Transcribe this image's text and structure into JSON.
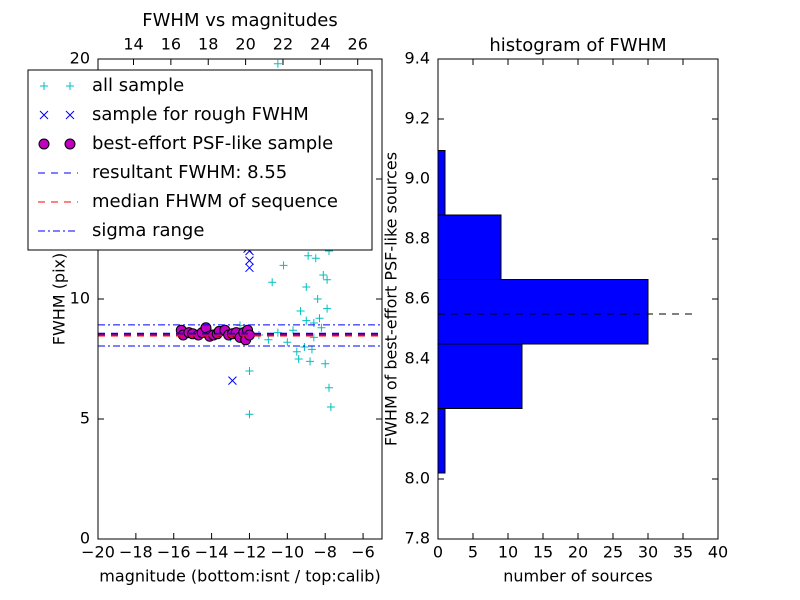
{
  "chart_data": [
    {
      "type": "scatter",
      "title": "FWHM vs magnitudes",
      "xlabel": "magnitude (bottom:isnt / top:calib)",
      "ylabel": "FWHM (pix)",
      "xlim": [
        -20,
        -5
      ],
      "xticks": [
        {
          "value": -20,
          "label": "−20"
        },
        {
          "value": -18,
          "label": "−18"
        },
        {
          "value": -16,
          "label": "−16"
        },
        {
          "value": -14,
          "label": "−14"
        },
        {
          "value": -12,
          "label": "−12"
        },
        {
          "value": -10,
          "label": "−10"
        },
        {
          "value": -8,
          "label": "−8"
        },
        {
          "value": -6,
          "label": "−6"
        }
      ],
      "x2lim": [
        12.1,
        27.3
      ],
      "x2ticks": [
        14,
        16,
        18,
        20,
        22,
        24,
        26
      ],
      "ylim": [
        0,
        20
      ],
      "yticks": [
        0,
        5,
        10,
        15,
        20
      ],
      "legend": "upper left",
      "series": [
        {
          "name": "all sample",
          "color": "#00bfbf",
          "marker": "plus",
          "x": [
            -12,
            -12,
            -7.7,
            -7.8,
            -11.5,
            -11,
            -10.5,
            -10,
            -9.7,
            -9.5,
            -9.3,
            -9.1,
            -9,
            -8.9,
            -8.8,
            -8.7,
            -8.6,
            -8.5,
            -8.4,
            -8.3,
            -8.2,
            -8.1,
            -8,
            -7.9,
            -7.8,
            -8.6,
            -8.4,
            -8.2,
            -9.2,
            -10.5,
            -11.8,
            -11.2,
            -10.8,
            -10.2,
            -9.8,
            -9.6,
            -9.4,
            -8.9,
            -8.7,
            -8.5,
            -8.3,
            -8.1,
            -7.9,
            -8.8,
            -8,
            -9,
            -8.6,
            -12.5,
            -13,
            -14,
            -15.5
          ],
          "values": [
            5.2,
            7,
            5.5,
            6.3,
            8.5,
            8.3,
            8.6,
            8.2,
            8.7,
            7.8,
            9.5,
            8,
            10.5,
            11.8,
            7.4,
            12.5,
            9,
            13.5,
            10,
            14.5,
            8.8,
            11,
            16,
            9.6,
            12,
            15,
            17,
            18.5,
            19.3,
            19.8,
            12.2,
            13,
            10.7,
            11.4,
            12.8,
            14,
            7.5,
            13.2,
            7.9,
            11.7,
            9.2,
            13.8,
            10.8,
            16.5,
            7.3,
            9.1,
            8.4,
            8.9,
            8.4,
            8.6,
            8.7
          ]
        },
        {
          "name": "sample for rough FWHM",
          "color": "#0000ff",
          "marker": "x",
          "x": [
            -12,
            -12,
            -12,
            -12.1,
            -12.9
          ],
          "values": [
            11.3,
            11.6,
            12,
            12.1,
            6.6
          ]
        },
        {
          "name": "best-effort PSF-like sample",
          "color": "#bf00bf",
          "marker": "circle",
          "x": [
            -15.6,
            -15.5,
            -15.2,
            -15,
            -14.7,
            -14.5,
            -14.3,
            -14.1,
            -13.9,
            -13.7,
            -13.6,
            -13.3,
            -13.1,
            -12.9,
            -12.7,
            -12.5,
            -12.3,
            -12.2,
            -12.1,
            -12
          ],
          "values": [
            8.7,
            8.5,
            8.6,
            8.55,
            8.5,
            8.6,
            8.8,
            8.45,
            8.5,
            8.55,
            8.65,
            8.7,
            8.5,
            8.55,
            8.6,
            8.4,
            8.6,
            8.3,
            8.7,
            8.5
          ]
        }
      ],
      "hlines": [
        {
          "name": "resultant FWHM: 8.55",
          "color": "#0000ff",
          "style": "dashed",
          "values": [
            8.55
          ]
        },
        {
          "name": "median FHWM of sequence",
          "color": "#ff0000",
          "style": "dashed",
          "values": [
            8.48
          ]
        },
        {
          "name": "sigma range",
          "color": "#0000ff",
          "style": "dashdot",
          "values": [
            8.04,
            8.92
          ]
        }
      ]
    },
    {
      "type": "histogram",
      "orientation": "horizontal",
      "title": "histogram of FWHM",
      "xlabel": "number of sources",
      "ylabel": "FWHM of best-effort PSF-like sources",
      "xlim": [
        0,
        40
      ],
      "xticks": [
        0,
        5,
        10,
        15,
        20,
        25,
        30,
        35,
        40
      ],
      "ylim": [
        7.8,
        9.4
      ],
      "yticks": [
        7.8,
        {
          "value": 8,
          "label": "8.0"
        },
        8.2,
        8.4,
        8.6,
        8.8,
        {
          "value": 9,
          "label": "9.0"
        },
        9.2,
        9.4
      ],
      "bins": [
        8.02,
        8.235,
        8.45,
        8.665,
        8.88,
        9.095
      ],
      "values": [
        1,
        12,
        30,
        9,
        1
      ],
      "color": "#0000ff",
      "reference_line": {
        "value": 8.55,
        "x_end": 36.4
      }
    }
  ]
}
